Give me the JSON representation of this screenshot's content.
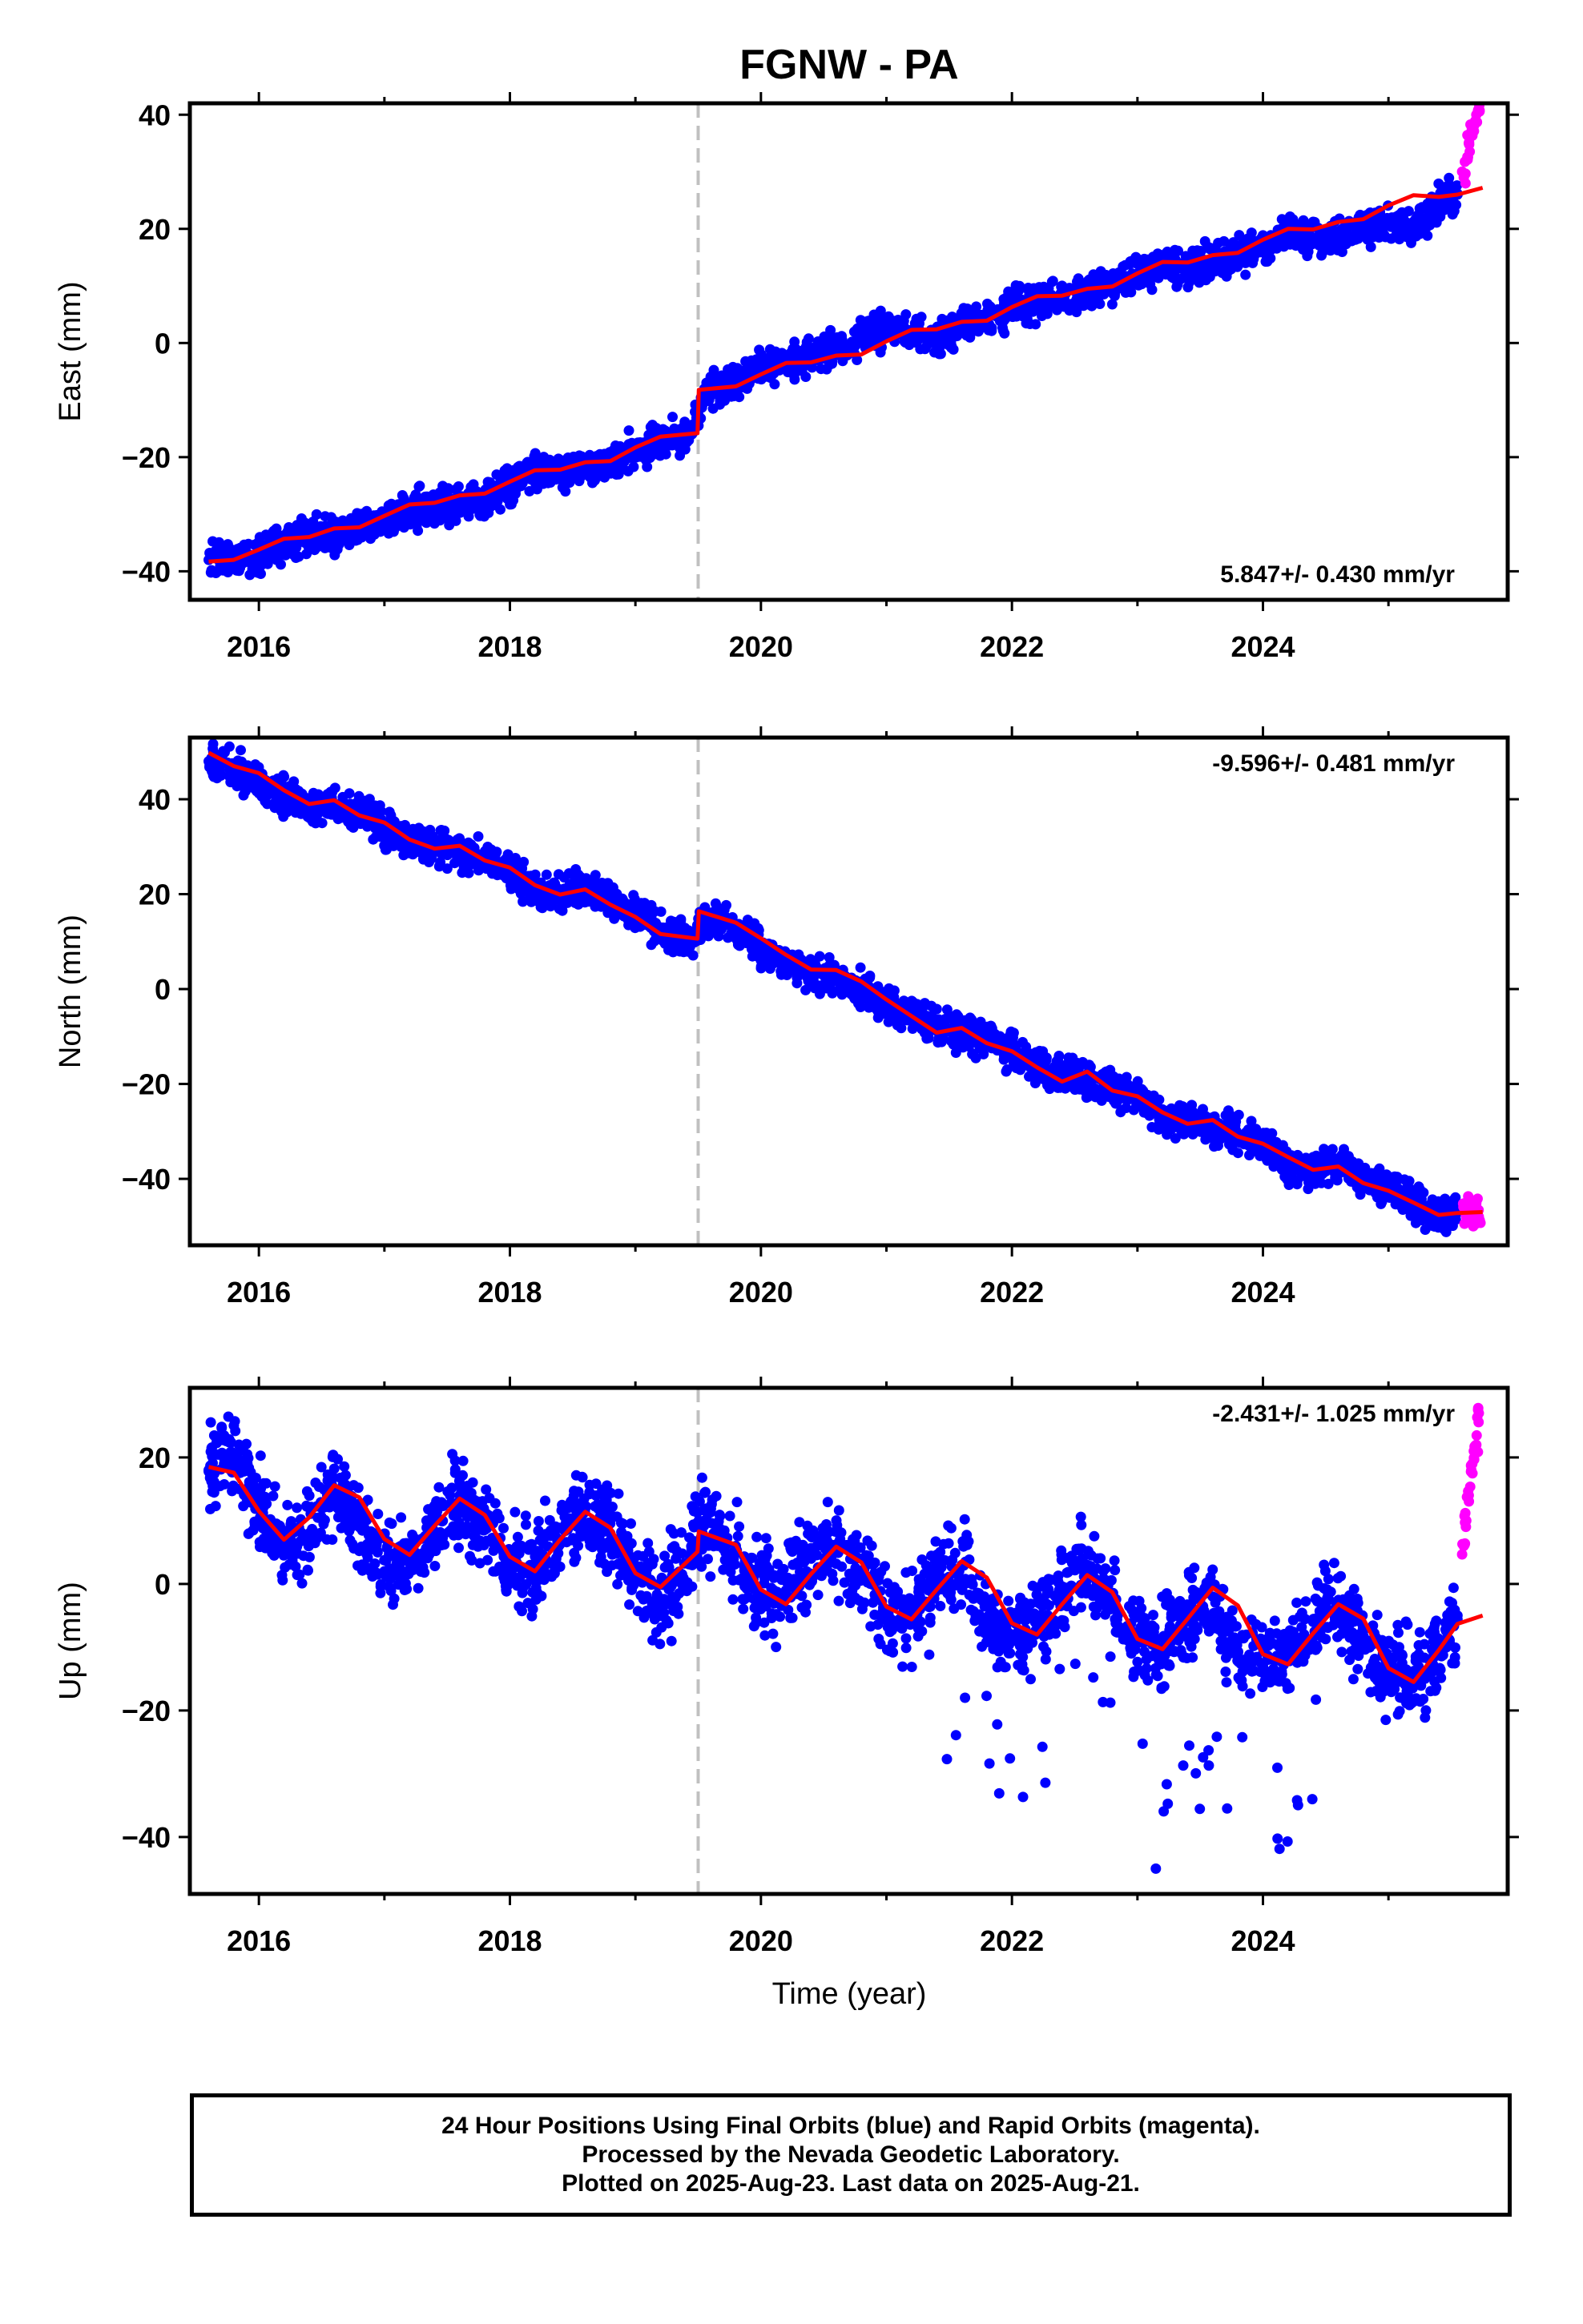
{
  "title": "FGNW - PA",
  "xlabel": "Time (year)",
  "x_ticks": [
    "2016",
    "2018",
    "2020",
    "2022",
    "2024"
  ],
  "caption": {
    "line1": "24 Hour Positions Using Final Orbits (blue) and Rapid Orbits (magenta).",
    "line2": "Processed by the Nevada Geodetic Laboratory.",
    "line3": "Plotted on 2025-Aug-23. Last data on 2025-Aug-21."
  },
  "colors": {
    "final_orbits": "#0000ff",
    "rapid_orbits": "#ff00ff",
    "model": "#ff0000",
    "event_line": "#c0c0c0"
  },
  "chart_data": [
    {
      "type": "scatter",
      "component": "East",
      "ylabel": "East (mm)",
      "ylim": [
        -45,
        42
      ],
      "xlim": [
        2015.45,
        2025.95
      ],
      "yticks": [
        -40,
        -20,
        0,
        20,
        40
      ],
      "rate_label": "5.847+/- 0.430 mm/yr",
      "rate_position": "bottom-right",
      "event_line_year": 2019.5,
      "series": [
        {
          "role": "final",
          "x": [
            2015.6,
            2015.8,
            2016.0,
            2016.2,
            2016.4,
            2016.6,
            2016.8,
            2017.0,
            2017.2,
            2017.4,
            2017.6,
            2017.8,
            2018.0,
            2018.2,
            2018.4,
            2018.6,
            2018.8,
            2019.0,
            2019.2,
            2019.45,
            2019.55,
            2019.8,
            2020.0,
            2020.2,
            2020.4,
            2020.6,
            2020.8,
            2021.0,
            2021.2,
            2021.4,
            2021.6,
            2021.8,
            2022.0,
            2022.2,
            2022.4,
            2022.6,
            2022.8,
            2023.0,
            2023.2,
            2023.4,
            2023.6,
            2023.8,
            2024.0,
            2024.2,
            2024.4,
            2024.6,
            2024.8,
            2025.0,
            2025.2,
            2025.4,
            2025.55
          ],
          "y": [
            -38,
            -38,
            -37,
            -35,
            -34,
            -33,
            -33,
            -31,
            -29,
            -29,
            -28,
            -27,
            -25,
            -23,
            -22,
            -22,
            -21,
            -19,
            -17,
            -16,
            -8,
            -7,
            -4,
            -3,
            -2,
            -1,
            1,
            3,
            2,
            1,
            3,
            4,
            6,
            7,
            8,
            9,
            10,
            12,
            14,
            13,
            14,
            15,
            17,
            19,
            18,
            19,
            20,
            21,
            20,
            24,
            26
          ]
        },
        {
          "role": "rapid",
          "x": [
            2025.6,
            2025.62,
            2025.64,
            2025.66,
            2025.68,
            2025.7,
            2025.72
          ],
          "y": [
            29,
            32,
            35,
            37,
            38,
            40,
            41
          ]
        },
        {
          "role": "model",
          "x": [
            2015.6,
            2015.8,
            2016.0,
            2016.2,
            2016.4,
            2016.6,
            2016.8,
            2017.0,
            2017.2,
            2017.4,
            2017.6,
            2017.8,
            2018.0,
            2018.2,
            2018.4,
            2018.6,
            2018.8,
            2019.0,
            2019.2,
            2019.495,
            2019.505,
            2019.8,
            2020.0,
            2020.2,
            2020.4,
            2020.6,
            2020.8,
            2021.0,
            2021.2,
            2021.4,
            2021.6,
            2021.8,
            2022.0,
            2022.2,
            2022.4,
            2022.6,
            2022.8,
            2023.0,
            2023.2,
            2023.4,
            2023.6,
            2023.8,
            2024.0,
            2024.2,
            2024.4,
            2024.6,
            2024.8,
            2025.0,
            2025.2,
            2025.4,
            2025.55,
            2025.75
          ],
          "y": [
            -38.3,
            -38.0,
            -36.2,
            -34.3,
            -34.0,
            -32.5,
            -32.3,
            -30.3,
            -28.3,
            -28.0,
            -26.7,
            -26.4,
            -24.3,
            -22.3,
            -22.2,
            -20.9,
            -20.7,
            -18.3,
            -16.4,
            -15.8,
            -8.2,
            -7.6,
            -5.5,
            -3.5,
            -3.4,
            -2.2,
            -2.0,
            0.3,
            2.3,
            2.4,
            3.7,
            3.9,
            6.3,
            8.2,
            8.3,
            9.5,
            9.9,
            12.2,
            14.2,
            14.1,
            15.4,
            15.8,
            18.1,
            20.0,
            19.9,
            21.2,
            21.7,
            24.1,
            25.9,
            25.6,
            26.0,
            27.2
          ]
        }
      ]
    },
    {
      "type": "scatter",
      "component": "North",
      "ylabel": "North (mm)",
      "ylim": [
        -54,
        53
      ],
      "xlim": [
        2015.45,
        2025.95
      ],
      "yticks": [
        -40,
        -20,
        0,
        20,
        40
      ],
      "rate_label": "-9.596+/- 0.481 mm/yr",
      "rate_position": "top-right",
      "event_line_year": 2019.5,
      "series": [
        {
          "role": "final",
          "x": [
            2015.6,
            2015.8,
            2016.0,
            2016.2,
            2016.4,
            2016.6,
            2016.8,
            2017.0,
            2017.2,
            2017.4,
            2017.6,
            2017.8,
            2018.0,
            2018.2,
            2018.4,
            2018.6,
            2018.8,
            2019.0,
            2019.2,
            2019.45,
            2019.55,
            2019.8,
            2020.0,
            2020.2,
            2020.4,
            2020.6,
            2020.8,
            2021.0,
            2021.2,
            2021.4,
            2021.6,
            2021.8,
            2022.0,
            2022.2,
            2022.4,
            2022.6,
            2022.8,
            2023.0,
            2023.2,
            2023.4,
            2023.6,
            2023.8,
            2024.0,
            2024.2,
            2024.4,
            2024.6,
            2024.8,
            2025.0,
            2025.2,
            2025.4,
            2025.55
          ],
          "y": [
            48,
            46,
            43,
            41,
            38,
            39,
            37,
            34,
            31,
            30,
            29,
            28,
            25,
            21,
            20,
            21,
            19,
            16,
            12,
            10,
            15,
            13,
            8,
            5,
            3,
            2,
            0,
            -3,
            -5,
            -8,
            -9,
            -10,
            -13,
            -16,
            -18,
            -19,
            -21,
            -23,
            -27,
            -27,
            -29,
            -31,
            -33,
            -37,
            -38,
            -37,
            -40,
            -42,
            -45,
            -47,
            -47
          ]
        },
        {
          "role": "rapid",
          "x": [
            2025.6,
            2025.62,
            2025.64,
            2025.66,
            2025.68,
            2025.7,
            2025.72
          ],
          "y": [
            -46,
            -48,
            -44,
            -47,
            -49,
            -45,
            -48
          ]
        },
        {
          "role": "model",
          "x": [
            2015.6,
            2015.8,
            2016.0,
            2016.2,
            2016.4,
            2016.6,
            2016.8,
            2017.0,
            2017.2,
            2017.4,
            2017.6,
            2017.8,
            2018.0,
            2018.2,
            2018.4,
            2018.6,
            2018.8,
            2019.0,
            2019.2,
            2019.495,
            2019.505,
            2019.8,
            2020.0,
            2020.2,
            2020.4,
            2020.6,
            2020.8,
            2021.0,
            2021.2,
            2021.4,
            2021.6,
            2021.8,
            2022.0,
            2022.2,
            2022.4,
            2022.6,
            2022.8,
            2023.0,
            2023.2,
            2023.4,
            2023.6,
            2023.8,
            2024.0,
            2024.2,
            2024.4,
            2024.6,
            2024.8,
            2025.0,
            2025.2,
            2025.4,
            2025.55,
            2025.75
          ],
          "y": [
            49.8,
            47.0,
            45.5,
            41.9,
            39.0,
            39.8,
            36.6,
            35.1,
            31.5,
            29.6,
            30.2,
            27.1,
            25.6,
            21.9,
            19.9,
            21.0,
            17.8,
            15.2,
            11.6,
            10.6,
            16.4,
            14.0,
            10.7,
            7.2,
            4.1,
            4.0,
            1.6,
            -2.2,
            -5.7,
            -9.2,
            -8.2,
            -11.4,
            -13.1,
            -16.5,
            -19.5,
            -17.4,
            -21.4,
            -22.6,
            -26.0,
            -28.4,
            -27.6,
            -31.1,
            -32.6,
            -35.4,
            -38.1,
            -37.4,
            -40.9,
            -42.5,
            -45.0,
            -47.6,
            -47.2,
            -47.0
          ]
        }
      ]
    },
    {
      "type": "scatter",
      "component": "Up",
      "ylabel": "Up (mm)",
      "ylim": [
        -49,
        31
      ],
      "xlim": [
        2015.45,
        2025.95
      ],
      "yticks": [
        -40,
        -20,
        0,
        20
      ],
      "rate_label": "-2.431+/- 1.025 mm/yr",
      "rate_position": "top-right",
      "event_line_year": 2019.5,
      "series": [
        {
          "role": "final",
          "x": [
            2015.6,
            2015.8,
            2016.0,
            2016.2,
            2016.4,
            2016.6,
            2016.8,
            2017.0,
            2017.2,
            2017.4,
            2017.6,
            2017.8,
            2018.0,
            2018.2,
            2018.4,
            2018.6,
            2018.8,
            2019.0,
            2019.2,
            2019.45,
            2019.55,
            2019.8,
            2020.0,
            2020.2,
            2020.4,
            2020.6,
            2020.8,
            2021.0,
            2021.2,
            2021.4,
            2021.6,
            2021.8,
            2022.0,
            2022.2,
            2022.4,
            2022.6,
            2022.8,
            2023.0,
            2023.2,
            2023.4,
            2023.6,
            2023.8,
            2024.0,
            2024.2,
            2024.4,
            2024.6,
            2024.8,
            2025.0,
            2025.2,
            2025.4,
            2025.55
          ],
          "y": [
            18,
            20,
            12,
            6,
            8,
            15,
            10,
            2,
            4,
            8,
            14,
            10,
            3,
            2,
            7,
            12,
            8,
            1,
            -3,
            5,
            10,
            6,
            -2,
            -1,
            4,
            6,
            2,
            -4,
            -5,
            2,
            3,
            -6,
            -8,
            -6,
            -1,
            3,
            -3,
            -9,
            -10,
            -5,
            -2,
            -11,
            -13,
            -10,
            -6,
            -3,
            -9,
            -14,
            -15,
            -11,
            -5
          ]
        },
        {
          "role": "rapid",
          "x": [
            2025.6,
            2025.62,
            2025.64,
            2025.66,
            2025.68,
            2025.7,
            2025.72
          ],
          "y": [
            6,
            10,
            14,
            18,
            21,
            22,
            27
          ]
        },
        {
          "role": "model",
          "x": [
            2015.6,
            2015.8,
            2016.0,
            2016.2,
            2016.4,
            2016.6,
            2016.8,
            2017.0,
            2017.2,
            2017.4,
            2017.6,
            2017.8,
            2018.0,
            2018.2,
            2018.4,
            2018.6,
            2018.8,
            2019.0,
            2019.2,
            2019.495,
            2019.505,
            2019.8,
            2020.0,
            2020.2,
            2020.4,
            2020.6,
            2020.8,
            2021.0,
            2021.2,
            2021.4,
            2021.6,
            2021.8,
            2022.0,
            2022.2,
            2022.4,
            2022.6,
            2022.8,
            2023.0,
            2023.2,
            2023.4,
            2023.6,
            2023.8,
            2024.0,
            2024.2,
            2024.4,
            2024.6,
            2024.8,
            2025.0,
            2025.2,
            2025.4,
            2025.55,
            2025.75
          ],
          "y": [
            18.5,
            17.6,
            11.5,
            7.0,
            10.5,
            15.6,
            13.7,
            7.1,
            4.6,
            9.2,
            13.5,
            10.9,
            4.3,
            2.0,
            7.0,
            11.4,
            8.9,
            1.7,
            -0.5,
            5.1,
            8.3,
            6.2,
            -0.9,
            -3.2,
            1.6,
            5.9,
            3.4,
            -3.6,
            -5.6,
            -0.9,
            3.6,
            1.0,
            -6.2,
            -8.0,
            -3.2,
            1.4,
            -1.3,
            -8.7,
            -10.3,
            -5.5,
            -0.6,
            -3.4,
            -11.1,
            -12.7,
            -7.8,
            -3.2,
            -5.5,
            -13.3,
            -15.5,
            -10.5,
            -6.3,
            -5.0
          ]
        }
      ]
    }
  ]
}
